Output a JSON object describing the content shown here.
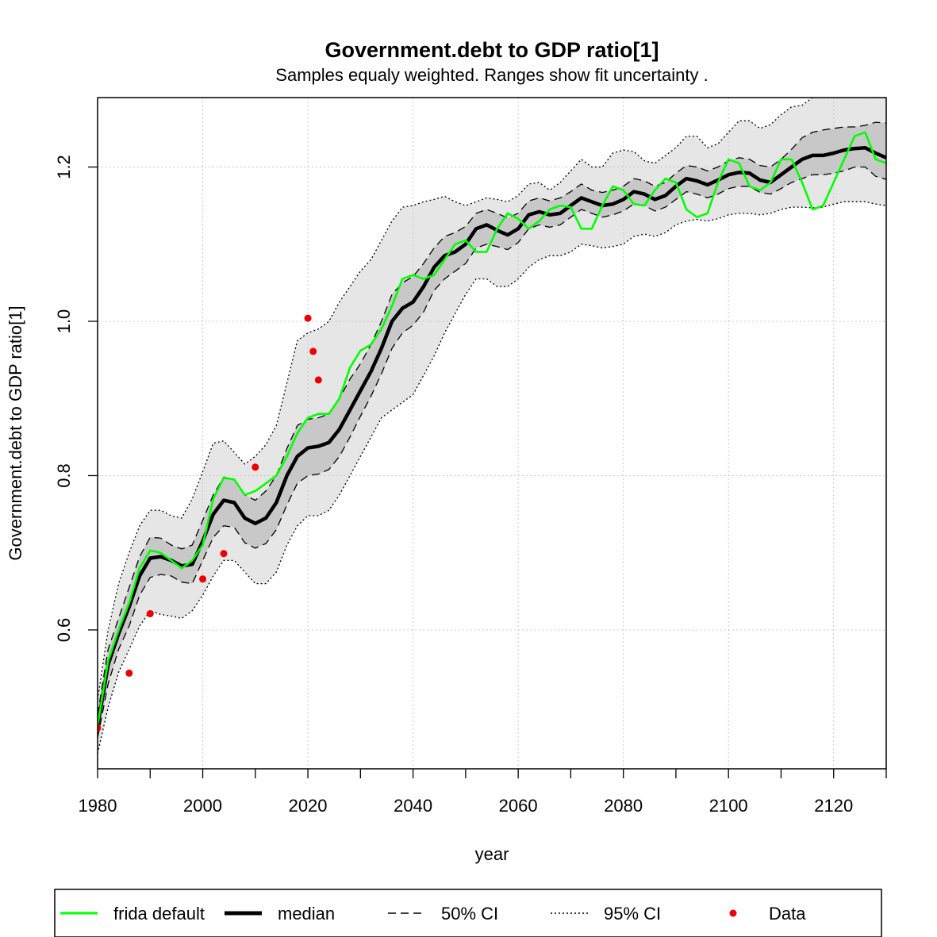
{
  "chart_data": {
    "type": "line",
    "title": "Government.debt to GDP ratio[1]",
    "subtitle": "Samples equaly weighted. Ranges show  fit uncertainty .",
    "xlabel": "year",
    "ylabel": "Government.debt to GDP ratio[1]",
    "xlim": [
      1980,
      2130
    ],
    "ylim": [
      0.42,
      1.29
    ],
    "x_ticks": [
      1980,
      2000,
      2020,
      2040,
      2060,
      2080,
      2100,
      2120
    ],
    "x_minor_ticks": [
      1990,
      2010,
      2030,
      2050,
      2070,
      2090,
      2110,
      2130
    ],
    "y_ticks": [
      0.6,
      0.8,
      1.0,
      1.2
    ],
    "y_tick_labels": [
      "0.6",
      "0.8",
      "1.0",
      "1.2"
    ],
    "grid": true,
    "legend_position": "bottom",
    "colors": {
      "frida_default": "#00ff00",
      "median": "#000000",
      "ci50_fill": "#c8c8c8",
      "ci95_fill": "#e6e6e6",
      "data_points": "#ee0000",
      "grid": "#c8c8c8"
    },
    "legend": [
      {
        "key": "frida",
        "label": "frida default"
      },
      {
        "key": "median",
        "label": "median"
      },
      {
        "key": "ci50",
        "label": "50% CI"
      },
      {
        "key": "ci95",
        "label": "95% CI"
      },
      {
        "key": "data",
        "label": "Data"
      }
    ],
    "x": [
      1980,
      1982,
      1984,
      1986,
      1988,
      1990,
      1992,
      1994,
      1996,
      1998,
      2000,
      2002,
      2004,
      2006,
      2008,
      2010,
      2012,
      2014,
      2016,
      2018,
      2020,
      2022,
      2024,
      2026,
      2028,
      2030,
      2032,
      2034,
      2036,
      2038,
      2040,
      2042,
      2044,
      2046,
      2048,
      2050,
      2052,
      2054,
      2056,
      2058,
      2060,
      2062,
      2064,
      2066,
      2068,
      2070,
      2072,
      2074,
      2076,
      2078,
      2080,
      2082,
      2084,
      2086,
      2088,
      2090,
      2092,
      2094,
      2096,
      2098,
      2100,
      2102,
      2104,
      2106,
      2108,
      2110,
      2112,
      2114,
      2116,
      2118,
      2120,
      2122,
      2124,
      2126,
      2128,
      2130
    ],
    "series": [
      {
        "key": "frida",
        "name": "frida default",
        "values": [
          0.476,
          0.56,
          0.6,
          0.635,
          0.68,
          0.703,
          0.7,
          0.69,
          0.68,
          0.69,
          0.71,
          0.77,
          0.797,
          0.795,
          0.775,
          0.78,
          0.79,
          0.8,
          0.825,
          0.855,
          0.875,
          0.88,
          0.88,
          0.9,
          0.94,
          0.962,
          0.97,
          0.99,
          1.02,
          1.055,
          1.06,
          1.055,
          1.06,
          1.08,
          1.1,
          1.105,
          1.09,
          1.09,
          1.12,
          1.14,
          1.133,
          1.12,
          1.13,
          1.145,
          1.15,
          1.148,
          1.12,
          1.12,
          1.15,
          1.175,
          1.17,
          1.152,
          1.15,
          1.17,
          1.185,
          1.18,
          1.145,
          1.135,
          1.14,
          1.18,
          1.21,
          1.205,
          1.175,
          1.17,
          1.18,
          1.21,
          1.21,
          1.18,
          1.145,
          1.15,
          1.18,
          1.21,
          1.24,
          1.245,
          1.21,
          1.205
        ]
      },
      {
        "key": "median",
        "name": "median",
        "values": [
          0.475,
          0.555,
          0.595,
          0.63,
          0.67,
          0.693,
          0.695,
          0.69,
          0.683,
          0.685,
          0.715,
          0.75,
          0.768,
          0.765,
          0.745,
          0.738,
          0.745,
          0.765,
          0.8,
          0.825,
          0.836,
          0.838,
          0.843,
          0.86,
          0.885,
          0.91,
          0.935,
          0.965,
          1.0,
          1.017,
          1.025,
          1.045,
          1.07,
          1.085,
          1.09,
          1.1,
          1.12,
          1.125,
          1.118,
          1.112,
          1.12,
          1.138,
          1.142,
          1.138,
          1.14,
          1.15,
          1.16,
          1.155,
          1.15,
          1.152,
          1.158,
          1.168,
          1.165,
          1.158,
          1.163,
          1.175,
          1.185,
          1.182,
          1.177,
          1.183,
          1.19,
          1.193,
          1.192,
          1.183,
          1.18,
          1.19,
          1.2,
          1.21,
          1.215,
          1.215,
          1.218,
          1.222,
          1.224,
          1.225,
          1.218,
          1.212
        ]
      }
    ],
    "ci50": {
      "lower": [
        0.46,
        0.53,
        0.575,
        0.605,
        0.645,
        0.668,
        0.672,
        0.67,
        0.662,
        0.66,
        0.69,
        0.72,
        0.735,
        0.733,
        0.713,
        0.706,
        0.712,
        0.73,
        0.762,
        0.79,
        0.8,
        0.802,
        0.808,
        0.825,
        0.85,
        0.877,
        0.903,
        0.932,
        0.965,
        0.985,
        0.995,
        1.012,
        1.04,
        1.055,
        1.065,
        1.075,
        1.095,
        1.1,
        1.097,
        1.093,
        1.102,
        1.12,
        1.125,
        1.122,
        1.125,
        1.135,
        1.145,
        1.14,
        1.135,
        1.138,
        1.143,
        1.152,
        1.15,
        1.143,
        1.148,
        1.158,
        1.168,
        1.165,
        1.16,
        1.165,
        1.172,
        1.175,
        1.175,
        1.167,
        1.165,
        1.172,
        1.18,
        1.185,
        1.19,
        1.19,
        1.192,
        1.195,
        1.2,
        1.2,
        1.188,
        1.184
      ],
      "upper": [
        0.49,
        0.575,
        0.615,
        0.655,
        0.695,
        0.72,
        0.719,
        0.71,
        0.705,
        0.71,
        0.742,
        0.775,
        0.798,
        0.795,
        0.775,
        0.768,
        0.78,
        0.8,
        0.835,
        0.865,
        0.873,
        0.875,
        0.88,
        0.9,
        0.925,
        0.945,
        0.97,
        1.0,
        1.035,
        1.05,
        1.058,
        1.075,
        1.095,
        1.11,
        1.115,
        1.123,
        1.14,
        1.145,
        1.14,
        1.134,
        1.14,
        1.156,
        1.16,
        1.156,
        1.16,
        1.168,
        1.178,
        1.17,
        1.167,
        1.17,
        1.175,
        1.185,
        1.182,
        1.175,
        1.18,
        1.192,
        1.202,
        1.2,
        1.195,
        1.2,
        1.208,
        1.212,
        1.21,
        1.202,
        1.2,
        1.21,
        1.223,
        1.238,
        1.245,
        1.248,
        1.25,
        1.252,
        1.252,
        1.254,
        1.258,
        1.257
      ]
    },
    "ci95": {
      "lower": [
        0.44,
        0.5,
        0.545,
        0.575,
        0.605,
        0.625,
        0.62,
        0.618,
        0.615,
        0.625,
        0.645,
        0.67,
        0.69,
        0.69,
        0.675,
        0.66,
        0.66,
        0.675,
        0.71,
        0.735,
        0.748,
        0.748,
        0.755,
        0.775,
        0.8,
        0.825,
        0.85,
        0.875,
        0.885,
        0.895,
        0.905,
        0.93,
        0.955,
        0.985,
        1.01,
        1.035,
        1.055,
        1.055,
        1.045,
        1.045,
        1.055,
        1.07,
        1.08,
        1.085,
        1.085,
        1.09,
        1.1,
        1.098,
        1.095,
        1.097,
        1.1,
        1.11,
        1.113,
        1.11,
        1.115,
        1.125,
        1.13,
        1.132,
        1.13,
        1.133,
        1.138,
        1.14,
        1.14,
        1.138,
        1.14,
        1.145,
        1.148,
        1.148,
        1.147,
        1.148,
        1.152,
        1.155,
        1.155,
        1.155,
        1.152,
        1.15
      ],
      "upper": [
        0.51,
        0.6,
        0.66,
        0.7,
        0.735,
        0.755,
        0.755,
        0.748,
        0.745,
        0.77,
        0.805,
        0.842,
        0.845,
        0.83,
        0.815,
        0.825,
        0.84,
        0.865,
        0.92,
        0.975,
        0.985,
        0.99,
        1.0,
        1.025,
        1.045,
        1.065,
        1.08,
        1.105,
        1.13,
        1.148,
        1.15,
        1.155,
        1.158,
        1.162,
        1.155,
        1.15,
        1.155,
        1.16,
        1.158,
        1.155,
        1.163,
        1.178,
        1.18,
        1.17,
        1.18,
        1.195,
        1.21,
        1.2,
        1.2,
        1.218,
        1.222,
        1.22,
        1.208,
        1.205,
        1.215,
        1.225,
        1.24,
        1.24,
        1.225,
        1.23,
        1.245,
        1.26,
        1.26,
        1.25,
        1.255,
        1.268,
        1.278,
        1.28,
        1.29,
        1.29,
        1.29,
        1.29,
        1.29,
        1.29,
        1.29,
        1.29
      ]
    },
    "data_points": [
      {
        "x": 1980,
        "y": 0.473
      },
      {
        "x": 1986,
        "y": 0.544
      },
      {
        "x": 1990,
        "y": 0.621
      },
      {
        "x": 2000,
        "y": 0.666
      },
      {
        "x": 2004,
        "y": 0.699
      },
      {
        "x": 2010,
        "y": 0.811
      },
      {
        "x": 2020,
        "y": 1.004
      },
      {
        "x": 2021,
        "y": 0.961
      },
      {
        "x": 2022,
        "y": 0.924
      }
    ]
  }
}
